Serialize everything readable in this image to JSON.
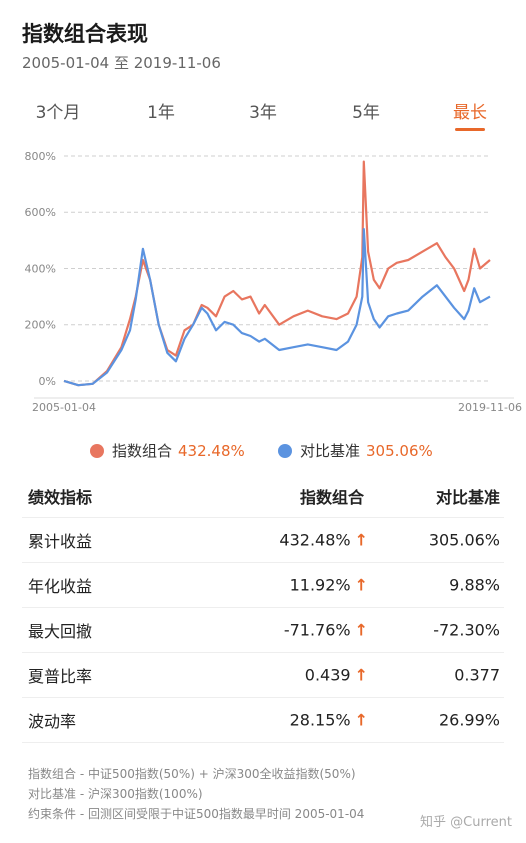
{
  "header": {
    "title": "指数组合表现",
    "date_range": "2005-01-04 至 2019-11-06"
  },
  "tabs": [
    {
      "label": "3个月",
      "active": false
    },
    {
      "label": "1年",
      "active": false
    },
    {
      "label": "3年",
      "active": false
    },
    {
      "label": "5年",
      "active": false
    },
    {
      "label": "最长",
      "active": true
    }
  ],
  "colors": {
    "portfolio": "#e8765f",
    "benchmark": "#5b93e0",
    "accent": "#e8682a"
  },
  "chart_data": {
    "type": "line",
    "x_start_label": "2005-01-04",
    "x_end_label": "2019-11-06",
    "y_ticks": [
      "800%",
      "600%",
      "400%",
      "200%",
      "0%"
    ],
    "ylim": [
      -50,
      800
    ],
    "grid": true,
    "x": [
      2005.0,
      2005.5,
      2006.0,
      2006.5,
      2007.0,
      2007.3,
      2007.5,
      2007.75,
      2008.0,
      2008.3,
      2008.6,
      2008.9,
      2009.2,
      2009.5,
      2009.8,
      2010.0,
      2010.3,
      2010.6,
      2010.9,
      2011.2,
      2011.5,
      2011.8,
      2012.0,
      2012.5,
      2013.0,
      2013.5,
      2014.0,
      2014.5,
      2014.9,
      2015.2,
      2015.4,
      2015.45,
      2015.6,
      2015.8,
      2016.0,
      2016.3,
      2016.6,
      2017.0,
      2017.5,
      2018.0,
      2018.3,
      2018.6,
      2018.95,
      2019.1,
      2019.3,
      2019.5,
      2019.85
    ],
    "series": [
      {
        "name": "指数组合",
        "values": [
          0,
          -15,
          -10,
          35,
          120,
          220,
          300,
          430,
          360,
          200,
          110,
          90,
          180,
          200,
          270,
          260,
          230,
          300,
          320,
          290,
          300,
          240,
          270,
          200,
          230,
          250,
          230,
          220,
          240,
          300,
          440,
          780,
          460,
          360,
          330,
          400,
          420,
          430,
          460,
          490,
          440,
          400,
          320,
          360,
          470,
          400,
          430
        ]
      },
      {
        "name": "对比基准",
        "values": [
          0,
          -15,
          -10,
          30,
          110,
          180,
          290,
          470,
          360,
          200,
          100,
          70,
          150,
          200,
          260,
          240,
          180,
          210,
          200,
          170,
          160,
          140,
          150,
          110,
          120,
          130,
          120,
          110,
          140,
          200,
          300,
          540,
          280,
          220,
          190,
          230,
          240,
          250,
          300,
          340,
          300,
          260,
          220,
          250,
          330,
          280,
          300
        ]
      }
    ]
  },
  "legend": [
    {
      "name": "指数组合",
      "value": "432.48%"
    },
    {
      "name": "对比基准",
      "value": "305.06%"
    }
  ],
  "table": {
    "headers": [
      "绩效指标",
      "指数组合",
      "对比基准"
    ],
    "rows": [
      {
        "label": "累计收益",
        "portfolio": "432.48%",
        "benchmark": "305.06%",
        "arrow": "↑"
      },
      {
        "label": "年化收益",
        "portfolio": "11.92%",
        "benchmark": "9.88%",
        "arrow": "↑"
      },
      {
        "label": "最大回撤",
        "portfolio": "-71.76%",
        "benchmark": "-72.30%",
        "arrow": "↑"
      },
      {
        "label": "夏普比率",
        "portfolio": "0.439",
        "benchmark": "0.377",
        "arrow": "↑"
      },
      {
        "label": "波动率",
        "portfolio": "28.15%",
        "benchmark": "26.99%",
        "arrow": "↑"
      }
    ]
  },
  "notes": [
    "指数组合 - 中证500指数(50%) + 沪深300全收益指数(50%)",
    "对比基准 - 沪深300指数(100%)",
    "约束条件 - 回测区间受限于中证500指数最早时间 2005-01-04"
  ],
  "watermark": "知乎 @Current"
}
